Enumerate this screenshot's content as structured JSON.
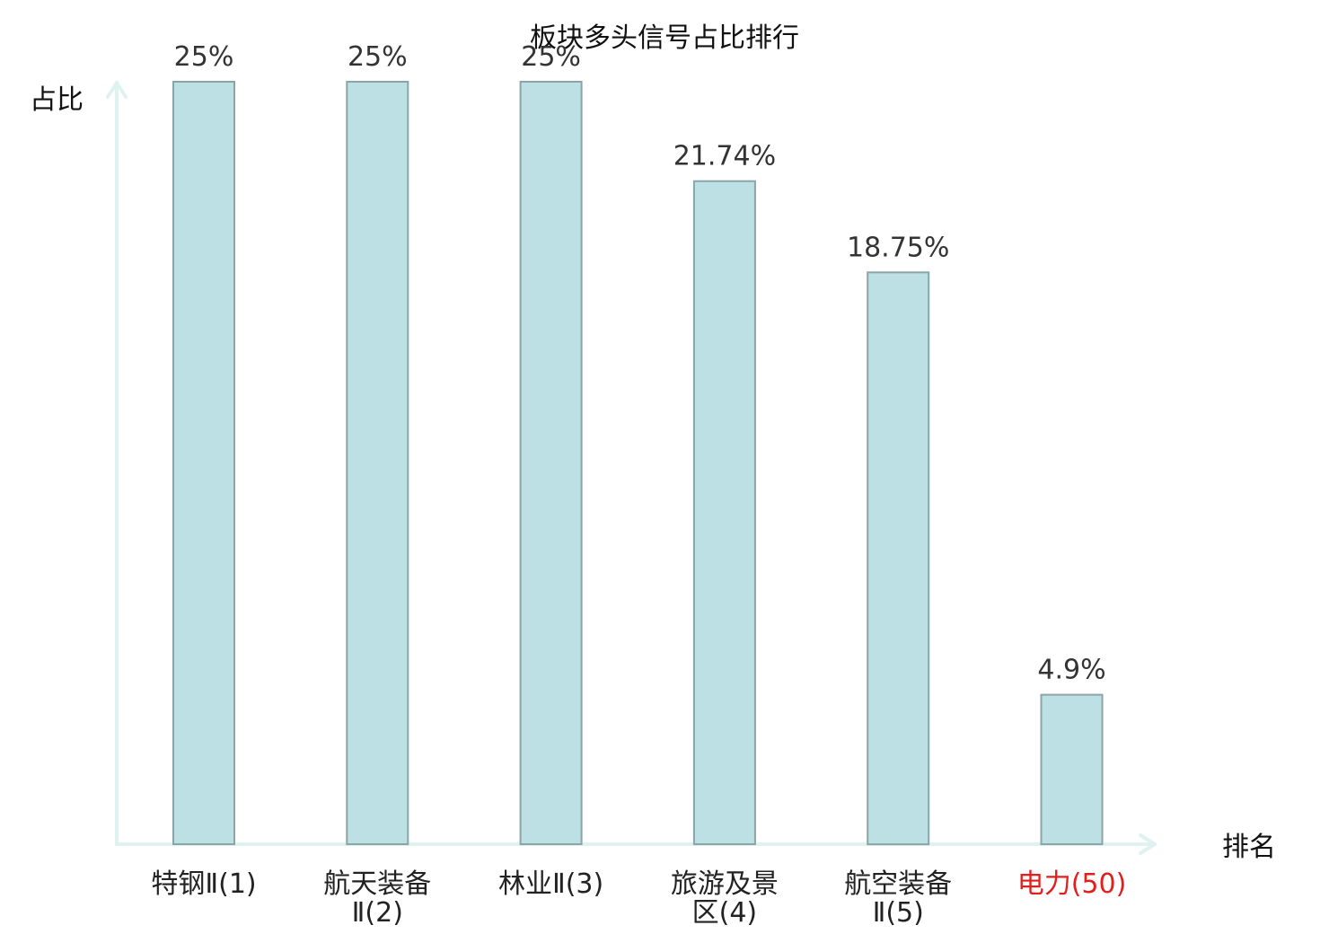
{
  "chart_data": {
    "type": "bar",
    "title": "板块多头信号占比排行",
    "xlabel": "排名",
    "ylabel": "占比",
    "ylim": [
      0,
      25
    ],
    "grid": false,
    "legend": "none",
    "categories": [
      [
        "特钢Ⅱ(1)"
      ],
      [
        "航天装备",
        "Ⅱ(2)"
      ],
      [
        "林业Ⅱ(3)"
      ],
      [
        "旅游及景",
        "区(4)"
      ],
      [
        "航空装备",
        "Ⅱ(5)"
      ],
      [
        "电力(50)"
      ]
    ],
    "values": [
      25,
      25,
      25,
      21.74,
      18.75,
      4.9
    ],
    "value_labels": [
      "25%",
      "25%",
      "25%",
      "21.74%",
      "18.75%",
      "4.9%"
    ],
    "highlight_index": 5,
    "colors": {
      "bar_fill": "#bce0e3",
      "bar_stroke": "#8aa5a7",
      "axis": "#e0f2f0",
      "tick_text": "#222222",
      "highlight_text": "#e0201d"
    }
  }
}
